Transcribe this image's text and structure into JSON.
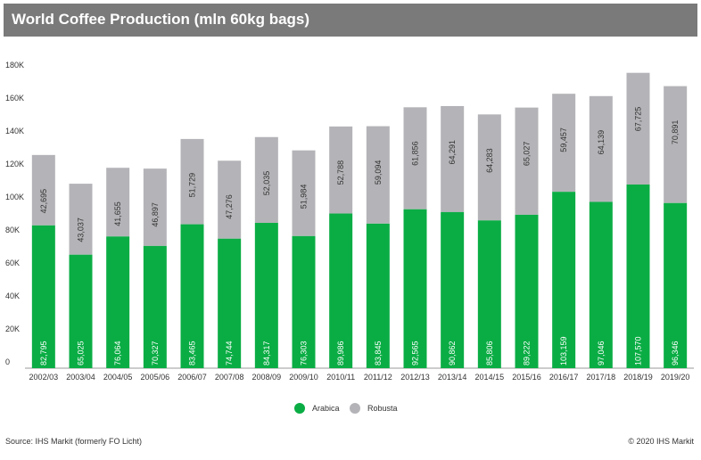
{
  "title": "World Coffee Production (mln 60kg bags)",
  "source": "Source: IHS Markit (formerly FO Licht)",
  "copyright": "© 2020 IHS Markit",
  "chart_data": {
    "type": "bar",
    "stacked": true,
    "title": "World Coffee Production (mln 60kg bags)",
    "xlabel": "",
    "ylabel": "",
    "ylim": [
      0,
      180000
    ],
    "yticks": [
      0,
      20000,
      40000,
      60000,
      80000,
      100000,
      120000,
      140000,
      160000,
      180000
    ],
    "ytick_labels": [
      "0",
      "20K",
      "40K",
      "60K",
      "80K",
      "100K",
      "120K",
      "140K",
      "160K",
      "180K"
    ],
    "grid": false,
    "legend": "bottom-center",
    "categories": [
      "2002/03",
      "2003/04",
      "2004/05",
      "2005/06",
      "2006/07",
      "2007/08",
      "2008/09",
      "2009/10",
      "2010/11",
      "2011/12",
      "2012/13",
      "2013/14",
      "2014/15",
      "2015/16",
      "2016/17",
      "2017/18",
      "2018/19",
      "2019/20"
    ],
    "series": [
      {
        "name": "Arabica",
        "color": "#0aad44",
        "values": [
          82795,
          65025,
          76064,
          70327,
          83465,
          74744,
          84317,
          76303,
          89986,
          83845,
          92565,
          90862,
          85806,
          89222,
          103159,
          97046,
          107570,
          96346
        ],
        "labels": [
          "82,795",
          "65,025",
          "76,064",
          "70,327",
          "83,465",
          "74,744",
          "84,317",
          "76,303",
          "89,986",
          "83,845",
          "92,565",
          "90,862",
          "85,806",
          "89,222",
          "103,159",
          "97,046",
          "107,570",
          "96,346"
        ]
      },
      {
        "name": "Robusta",
        "color": "#b4b4b8",
        "values": [
          42695,
          43037,
          41655,
          46897,
          51729,
          47276,
          52035,
          51984,
          52788,
          59094,
          61856,
          64291,
          64283,
          65027,
          59457,
          64139,
          67725,
          70891
        ],
        "labels": [
          "42,695",
          "43,037",
          "41,655",
          "46,897",
          "51,729",
          "47,276",
          "52,035",
          "51,984",
          "52,788",
          "59,094",
          "61,856",
          "64,291",
          "64,283",
          "65,027",
          "59,457",
          "64,139",
          "67,725",
          "70,891"
        ]
      }
    ]
  }
}
